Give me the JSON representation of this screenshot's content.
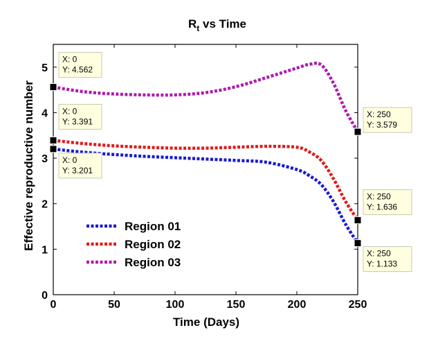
{
  "chart_data": {
    "type": "line",
    "title_main": "R",
    "title_sub": "t",
    "title_rest": " vs Time",
    "xlabel": "Time (Days)",
    "ylabel": "Effective reproductive number",
    "xlim": [
      0,
      250
    ],
    "ylim": [
      0,
      5.5
    ],
    "xticks": [
      0,
      50,
      100,
      150,
      200,
      250
    ],
    "yticks": [
      0,
      1,
      2,
      3,
      4,
      5
    ],
    "grid": false,
    "legend_position": "bottom-left",
    "line_style": "dotted",
    "series": [
      {
        "name": "Region 01",
        "color": "#1a1ad6",
        "x": [
          0,
          25,
          50,
          75,
          100,
          125,
          150,
          175,
          200,
          210,
          220,
          230,
          240,
          250
        ],
        "y": [
          3.201,
          3.13,
          3.08,
          3.04,
          3.01,
          2.98,
          2.95,
          2.91,
          2.75,
          2.62,
          2.42,
          2.05,
          1.55,
          1.133
        ]
      },
      {
        "name": "Region 02",
        "color": "#e21a1a",
        "x": [
          0,
          25,
          50,
          75,
          100,
          125,
          150,
          175,
          200,
          210,
          220,
          230,
          240,
          250
        ],
        "y": [
          3.391,
          3.32,
          3.27,
          3.24,
          3.22,
          3.22,
          3.24,
          3.26,
          3.24,
          3.14,
          2.95,
          2.55,
          2.05,
          1.636
        ]
      },
      {
        "name": "Region 03",
        "color": "#b01ab0",
        "x": [
          0,
          25,
          50,
          75,
          100,
          125,
          150,
          175,
          200,
          210,
          220,
          230,
          240,
          250
        ],
        "y": [
          4.562,
          4.46,
          4.41,
          4.39,
          4.39,
          4.44,
          4.57,
          4.77,
          4.98,
          5.06,
          5.05,
          4.65,
          4.05,
          3.579
        ]
      }
    ],
    "datatips": [
      {
        "x": 0,
        "y": 4.562,
        "x_label": "X: 0",
        "y_label": "Y: 4.562",
        "side": "right"
      },
      {
        "x": 0,
        "y": 3.391,
        "x_label": "X: 0",
        "y_label": "Y: 3.391",
        "side": "right"
      },
      {
        "x": 0,
        "y": 3.201,
        "x_label": "X: 0",
        "y_label": "Y: 3.201",
        "side": "right"
      },
      {
        "x": 250,
        "y": 3.579,
        "x_label": "X: 250",
        "y_label": "Y: 3.579",
        "side": "right"
      },
      {
        "x": 250,
        "y": 1.636,
        "x_label": "X: 250",
        "y_label": "Y: 1.636",
        "side": "right"
      },
      {
        "x": 250,
        "y": 1.133,
        "x_label": "X: 250",
        "y_label": "Y: 1.133",
        "side": "right"
      }
    ]
  }
}
